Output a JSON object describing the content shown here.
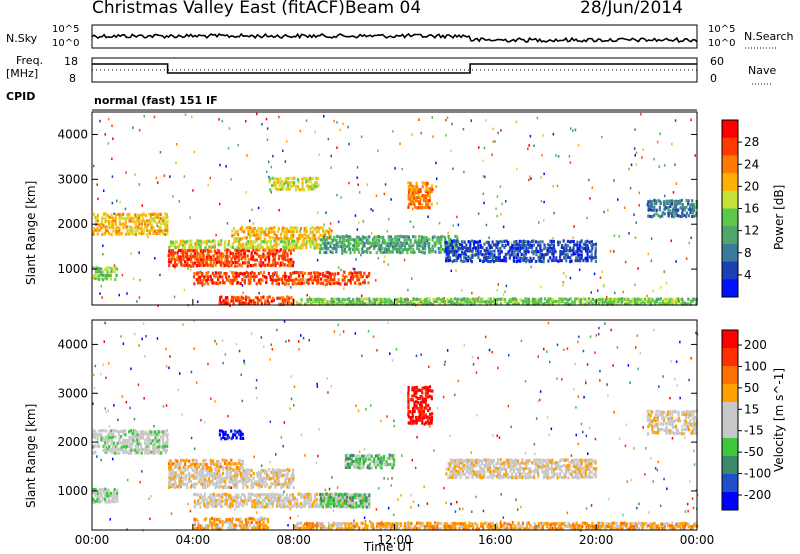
{
  "header": {
    "title": "Christmas Valley East (fitACF)",
    "beam": "Beam 04",
    "date": "28/Jun/2014"
  },
  "top_strip": {
    "nsky_label": "N.Sky",
    "nsky_ticks": [
      "10^5",
      "10^0"
    ],
    "nsearch_label": "N.Search",
    "nsearch_ticks": [
      "10^5",
      "10^0"
    ],
    "freq_label_1": "Freq.",
    "freq_label_2": "[MHz]",
    "freq_ticks": [
      "18",
      "8"
    ],
    "nave_label": "Nave",
    "nave_ticks": [
      "60",
      "0"
    ],
    "cpid_label": "CPID",
    "cpid_value": "normal (fast) 151 IF"
  },
  "colors": {
    "power_scale": [
      "#0010ff",
      "#1e3fb4",
      "#3a7a9a",
      "#4fa86a",
      "#5cc84a",
      "#c8e03a",
      "#ffb000",
      "#ff7a00",
      "#ff3a00",
      "#ff0000"
    ],
    "velocity_scale": [
      "#0000ff",
      "#2050c8",
      "#3a8a6a",
      "#3cc83c",
      "#c8c8c8",
      "#c8c8c8",
      "#ffa000",
      "#ff7000",
      "#ff3000",
      "#ff0000"
    ]
  },
  "chart_data": [
    {
      "type": "heatmap",
      "name": "power",
      "ylabel": "Slant Range [km]",
      "yticks": [
        "1000",
        "2000",
        "3000",
        "4000"
      ],
      "ylim": [
        200,
        4500
      ],
      "xlim": [
        0,
        24
      ],
      "colorbar_label": "Power [dB]",
      "colorbar_ticks": [
        "4",
        "8",
        "12",
        "16",
        "20",
        "24",
        "28"
      ],
      "bands": [
        {
          "t0": 0.0,
          "t1": 3.0,
          "r0": 1800,
          "r1": 2300,
          "level": 6
        },
        {
          "t0": 0.0,
          "t1": 1.0,
          "r0": 800,
          "r1": 1100,
          "level": 4
        },
        {
          "t0": 3.0,
          "t1": 8.0,
          "r0": 1100,
          "r1": 1500,
          "level": 8
        },
        {
          "t0": 3.0,
          "t1": 9.0,
          "r0": 1500,
          "r1": 1700,
          "level": 5
        },
        {
          "t0": 4.0,
          "t1": 11.0,
          "r0": 700,
          "r1": 1000,
          "level": 8
        },
        {
          "t0": 5.0,
          "t1": 8.0,
          "r0": 250,
          "r1": 450,
          "level": 8
        },
        {
          "t0": 5.5,
          "t1": 9.5,
          "r0": 1700,
          "r1": 2000,
          "level": 6
        },
        {
          "t0": 9.0,
          "t1": 14.5,
          "r0": 1400,
          "r1": 1800,
          "level": 3
        },
        {
          "t0": 12.5,
          "t1": 13.5,
          "r0": 2400,
          "r1": 3000,
          "level": 7
        },
        {
          "t0": 14.0,
          "t1": 20.0,
          "r0": 1200,
          "r1": 1700,
          "level": 1
        },
        {
          "t0": 8.0,
          "t1": 24.0,
          "r0": 250,
          "r1": 400,
          "level": 4
        },
        {
          "t0": 22.0,
          "t1": 24.0,
          "r0": 2200,
          "r1": 2600,
          "level": 2
        },
        {
          "t0": 7.0,
          "t1": 9.0,
          "r0": 2800,
          "r1": 3100,
          "level": 5
        }
      ]
    },
    {
      "type": "heatmap",
      "name": "velocity",
      "ylabel": "Slant Range [km]",
      "yticks": [
        "1000",
        "2000",
        "3000",
        "4000"
      ],
      "ylim": [
        200,
        4500
      ],
      "xlim": [
        0,
        24
      ],
      "xticks": [
        "00:00",
        "04:00",
        "08:00",
        "12:00",
        "16:00",
        "20:00",
        "00:00"
      ],
      "xlabel": "Time UT",
      "colorbar_label": "Velocity [m s^-1]",
      "colorbar_ticks": [
        "200",
        "100",
        "50",
        "15",
        "-15",
        "-50",
        "-100",
        "-200"
      ],
      "bands": [
        {
          "t0": 0.0,
          "t1": 3.0,
          "r0": 1800,
          "r1": 2300,
          "level": 4
        },
        {
          "t0": 0.0,
          "t1": 1.0,
          "r0": 800,
          "r1": 1100,
          "level": 4
        },
        {
          "t0": 3.0,
          "t1": 8.0,
          "r0": 1100,
          "r1": 1500,
          "level": 5
        },
        {
          "t0": 3.0,
          "t1": 6.0,
          "r0": 1500,
          "r1": 1700,
          "level": 6
        },
        {
          "t0": 4.0,
          "t1": 11.0,
          "r0": 700,
          "r1": 1000,
          "level": 5
        },
        {
          "t0": 4.0,
          "t1": 7.0,
          "r0": 250,
          "r1": 500,
          "level": 6
        },
        {
          "t0": 5.0,
          "t1": 6.0,
          "r0": 2100,
          "r1": 2300,
          "level": 0
        },
        {
          "t0": 9.0,
          "t1": 11.0,
          "r0": 700,
          "r1": 1000,
          "level": 3
        },
        {
          "t0": 10.0,
          "t1": 12.0,
          "r0": 1500,
          "r1": 1800,
          "level": 3
        },
        {
          "t0": 12.5,
          "t1": 13.5,
          "r0": 2400,
          "r1": 3200,
          "level": 9
        },
        {
          "t0": 14.0,
          "t1": 20.0,
          "r0": 1300,
          "r1": 1700,
          "level": 5
        },
        {
          "t0": 8.0,
          "t1": 24.0,
          "r0": 250,
          "r1": 400,
          "level": 6
        },
        {
          "t0": 22.0,
          "t1": 24.0,
          "r0": 2200,
          "r1": 2700,
          "level": 5
        }
      ]
    }
  ]
}
